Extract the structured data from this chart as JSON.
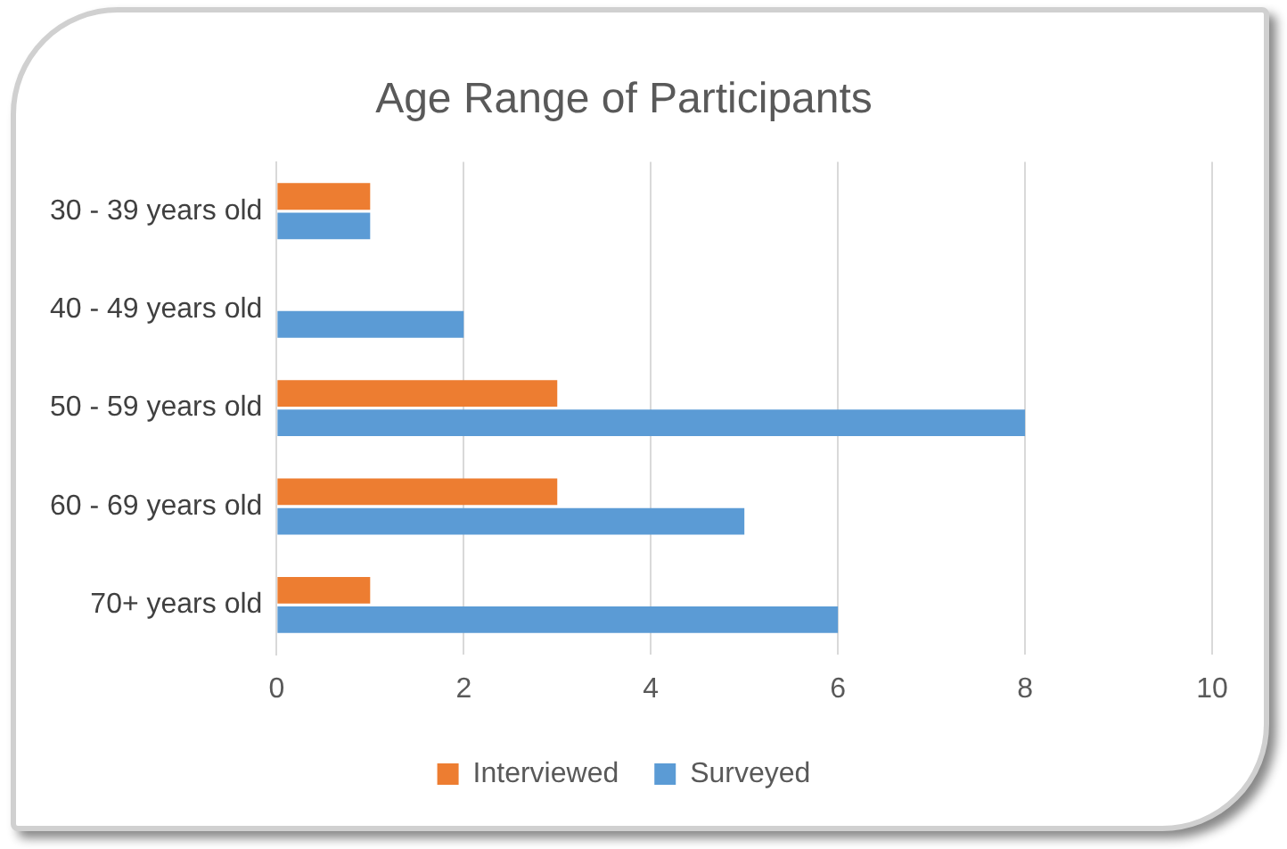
{
  "chart_data": {
    "type": "bar",
    "orientation": "horizontal",
    "title": "Age Range of Participants",
    "categories": [
      "30 - 39 years old",
      "40 - 49 years old",
      "50 - 59 years old",
      "60 - 69 years old",
      "70+ years old"
    ],
    "series": [
      {
        "name": "Interviewed",
        "color": "#ed7d31",
        "values": [
          1,
          0,
          3,
          3,
          1
        ]
      },
      {
        "name": "Surveyed",
        "color": "#5b9bd5",
        "values": [
          1,
          2,
          8,
          5,
          6
        ]
      }
    ],
    "xlim": [
      0,
      10
    ],
    "xticks": [
      0,
      2,
      4,
      6,
      8,
      10
    ],
    "grid": "x",
    "legend": "bottom"
  }
}
